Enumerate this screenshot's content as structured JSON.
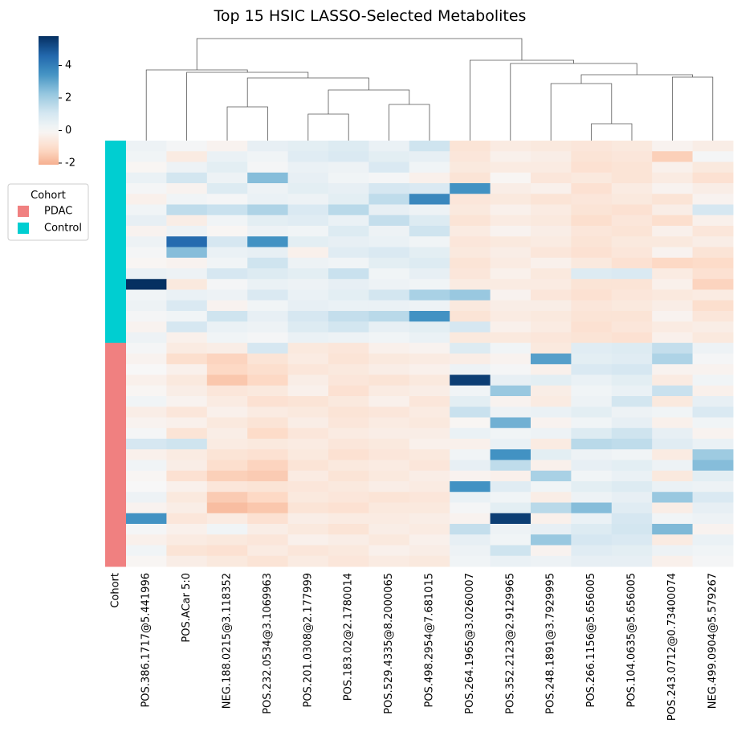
{
  "chart_data": {
    "type": "clustermap",
    "title": "Top 15 HSIC LASSO-Selected Metabolites",
    "columns": [
      "POS.386.1717@5.441996",
      "POS.ACar 5:0",
      "NEG.188.0215@3.118352",
      "POS.232.0534@3.1069963",
      "POS.201.0308@2.177999",
      "POS.183.02@2.1780014",
      "POS.529.4335@8.2000065",
      "POS.498.2954@7.681015",
      "POS.264.1965@3.0260007",
      "POS.352.2123@2.9129965",
      "POS.248.1891@3.7929995",
      "POS.266.1156@5.656005",
      "POS.104.0635@5.656005",
      "POS.243.0712@0.73400074",
      "NEG.499.0904@5.579267"
    ],
    "cohort_label": "Cohort",
    "legend": {
      "title": "Cohort",
      "entries": [
        {
          "name": "PDAC",
          "color": "#f08080"
        },
        {
          "name": "Control",
          "color": "#00ced1"
        }
      ]
    },
    "row_cohort": [
      "Control",
      "Control",
      "Control",
      "Control",
      "Control",
      "Control",
      "Control",
      "Control",
      "Control",
      "Control",
      "Control",
      "Control",
      "Control",
      "Control",
      "Control",
      "Control",
      "Control",
      "Control",
      "Control",
      "PDAC",
      "PDAC",
      "PDAC",
      "PDAC",
      "PDAC",
      "PDAC",
      "PDAC",
      "PDAC",
      "PDAC",
      "PDAC",
      "PDAC",
      "PDAC",
      "PDAC",
      "PDAC",
      "PDAC",
      "PDAC",
      "PDAC",
      "PDAC",
      "PDAC",
      "PDAC",
      "PDAC"
    ],
    "values": [
      [
        0.3,
        0.1,
        -0.2,
        0.5,
        0.6,
        0.8,
        0.4,
        1.2,
        -0.8,
        -0.5,
        -0.6,
        -0.7,
        -0.6,
        -0.2,
        -0.4
      ],
      [
        0.2,
        -0.5,
        0.4,
        0.2,
        0.7,
        0.9,
        0.6,
        0.5,
        -0.7,
        -0.3,
        -0.4,
        -0.8,
        -0.7,
        -1.4,
        0.1
      ],
      [
        -0.1,
        0.3,
        0.6,
        0.1,
        0.4,
        0.3,
        0.9,
        0.2,
        -0.6,
        -0.5,
        -0.5,
        -0.9,
        -0.8,
        -0.3,
        -0.6
      ],
      [
        0.4,
        1.1,
        0.3,
        2.5,
        0.5,
        0.2,
        0.1,
        -0.3,
        -0.8,
        -0.1,
        -0.7,
        -0.6,
        -0.8,
        -0.5,
        -0.9
      ],
      [
        0.1,
        -0.2,
        0.8,
        0.3,
        0.6,
        0.5,
        1.0,
        0.9,
        3.5,
        -0.4,
        -0.3,
        -0.9,
        -0.5,
        -0.2,
        -0.4
      ],
      [
        -0.3,
        0.2,
        0.1,
        0.4,
        0.3,
        0.6,
        1.5,
        3.8,
        -0.7,
        -0.6,
        -0.8,
        -0.7,
        -0.6,
        -0.8,
        -0.2
      ],
      [
        0.2,
        1.5,
        1.3,
        1.8,
        0.9,
        1.6,
        0.5,
        0.3,
        -0.6,
        -0.3,
        -0.5,
        -0.8,
        -0.9,
        -0.4,
        1.0
      ],
      [
        0.5,
        -0.4,
        0.2,
        0.6,
        0.7,
        0.4,
        1.4,
        0.8,
        -0.8,
        -0.5,
        -0.6,
        -1.0,
        -0.7,
        -1.0,
        -0.3
      ],
      [
        -0.2,
        0.3,
        -0.1,
        0.3,
        0.2,
        0.8,
        0.3,
        1.2,
        -0.5,
        -0.2,
        -0.4,
        -0.7,
        -0.8,
        -0.3,
        -0.7
      ],
      [
        0.3,
        4.5,
        1.0,
        3.5,
        0.6,
        0.5,
        0.4,
        0.2,
        -0.7,
        -0.6,
        -0.5,
        -0.8,
        -0.6,
        -0.6,
        -0.4
      ],
      [
        0.1,
        2.5,
        0.4,
        0.5,
        -0.3,
        0.7,
        0.9,
        0.6,
        -0.6,
        -0.4,
        -0.7,
        -0.9,
        -0.7,
        -0.2,
        -0.8
      ],
      [
        -0.1,
        -0.2,
        0.2,
        1.2,
        0.3,
        0.2,
        0.6,
        0.8,
        -0.8,
        -0.5,
        -0.3,
        -0.6,
        -0.9,
        -1.2,
        -1.1
      ],
      [
        0.4,
        0.3,
        1.0,
        0.8,
        0.6,
        1.3,
        0.2,
        0.5,
        -0.7,
        -0.3,
        -0.6,
        0.8,
        0.9,
        -0.5,
        -0.9
      ],
      [
        5.8,
        -0.6,
        0.1,
        0.4,
        0.3,
        0.5,
        0.3,
        0.2,
        -0.5,
        -0.5,
        -0.5,
        -0.8,
        -0.8,
        -0.3,
        -1.3
      ],
      [
        0.2,
        0.4,
        0.3,
        0.9,
        0.4,
        0.6,
        1.1,
        1.9,
        2.2,
        -0.2,
        -0.7,
        -0.9,
        -0.7,
        -0.6,
        -0.5
      ],
      [
        0.3,
        0.9,
        -0.2,
        0.2,
        0.5,
        0.4,
        0.4,
        0.3,
        -0.6,
        -0.4,
        -0.4,
        -0.7,
        -0.6,
        -0.4,
        -1.0
      ],
      [
        0.1,
        0.2,
        1.2,
        0.5,
        1.0,
        1.4,
        1.6,
        3.5,
        -0.8,
        -0.5,
        -0.6,
        -0.8,
        -0.8,
        -0.2,
        -0.7
      ],
      [
        -0.2,
        1.0,
        0.4,
        0.3,
        0.8,
        1.1,
        0.5,
        0.6,
        1.0,
        -0.3,
        -0.5,
        -0.9,
        -0.7,
        -0.5,
        -0.4
      ],
      [
        0.3,
        -0.3,
        0.2,
        0.1,
        0.4,
        0.3,
        0.2,
        0.4,
        -0.6,
        -0.6,
        -0.7,
        -0.8,
        -0.9,
        -0.3,
        -0.6
      ],
      [
        0.1,
        -0.5,
        -0.4,
        1.0,
        -0.6,
        -0.7,
        -0.3,
        -0.2,
        0.8,
        0.2,
        -0.6,
        0.7,
        0.8,
        1.4,
        0.3
      ],
      [
        -0.2,
        -1.0,
        -1.3,
        -0.8,
        -0.5,
        -0.8,
        -0.6,
        -0.5,
        -0.4,
        -0.2,
        3.2,
        0.6,
        0.7,
        1.8,
        0.1
      ],
      [
        0.0,
        -0.3,
        -1.2,
        -1.0,
        -0.7,
        -0.6,
        -0.4,
        -0.3,
        0.3,
        0.1,
        -0.3,
        0.9,
        1.0,
        -0.2,
        -0.2
      ],
      [
        -0.3,
        -0.6,
        -1.6,
        -1.2,
        -0.4,
        -0.7,
        -0.8,
        -0.6,
        5.5,
        0.5,
        0.6,
        0.4,
        0.6,
        -0.5,
        0.2
      ],
      [
        -0.1,
        -0.4,
        -0.7,
        -0.6,
        -0.3,
        -0.9,
        -0.5,
        -0.4,
        0.2,
        2.2,
        -0.4,
        0.2,
        0.4,
        1.3,
        -0.3
      ],
      [
        0.2,
        -0.2,
        -0.5,
        -0.9,
        -0.8,
        -0.6,
        -0.3,
        -0.7,
        0.6,
        -0.2,
        -0.5,
        0.3,
        1.1,
        -0.6,
        0.5
      ],
      [
        -0.4,
        -0.7,
        -0.3,
        -0.5,
        -0.6,
        -0.8,
        -0.7,
        -0.5,
        1.3,
        0.3,
        0.4,
        0.6,
        0.3,
        0.2,
        0.9
      ],
      [
        -0.2,
        -0.3,
        -0.6,
        -0.8,
        -0.4,
        -0.7,
        -0.5,
        -0.6,
        -0.1,
        2.8,
        -0.2,
        0.2,
        0.5,
        -0.3,
        0.2
      ],
      [
        0.1,
        -0.8,
        -0.4,
        -1.1,
        -0.7,
        -0.5,
        -0.4,
        -0.4,
        0.4,
        0.2,
        0.3,
        0.8,
        1.2,
        0.5,
        -0.2
      ],
      [
        1.0,
        1.2,
        -0.5,
        -0.6,
        -0.5,
        -0.7,
        -0.6,
        -0.3,
        -0.3,
        0.4,
        -0.5,
        1.6,
        1.5,
        0.7,
        0.4
      ],
      [
        -0.3,
        -0.5,
        -0.8,
        -0.9,
        -0.6,
        -0.9,
        -0.7,
        -0.6,
        0.2,
        3.5,
        0.6,
        0.3,
        0.2,
        -0.5,
        2.1
      ],
      [
        0.2,
        -0.4,
        -1.0,
        -1.3,
        -0.8,
        -0.6,
        -0.5,
        -0.7,
        0.5,
        1.5,
        -0.3,
        0.5,
        0.6,
        0.3,
        2.5
      ],
      [
        -0.1,
        -0.9,
        -1.4,
        -1.5,
        -0.5,
        -0.8,
        -0.6,
        -0.4,
        -0.2,
        -0.3,
        1.9,
        0.2,
        0.4,
        -0.6,
        0.6
      ],
      [
        0.0,
        -0.3,
        -0.7,
        -0.8,
        -0.7,
        -0.6,
        -0.4,
        -0.5,
        3.5,
        0.7,
        0.2,
        0.6,
        0.8,
        0.4,
        0.3
      ],
      [
        0.3,
        -0.6,
        -1.5,
        -1.2,
        -0.6,
        -0.7,
        -0.8,
        -0.7,
        0.4,
        0.2,
        -0.4,
        0.3,
        0.5,
        2.2,
        0.9
      ],
      [
        -0.2,
        -0.4,
        -1.8,
        -1.6,
        -0.8,
        -0.9,
        -0.6,
        -0.6,
        0.1,
        0.6,
        1.6,
        2.5,
        0.7,
        -0.4,
        0.5
      ],
      [
        3.5,
        -0.7,
        -0.5,
        -0.9,
        -0.4,
        -0.5,
        -0.5,
        -0.4,
        -0.2,
        5.5,
        -0.3,
        0.4,
        1.0,
        0.2,
        0.3
      ],
      [
        0.1,
        -0.3,
        0.2,
        -0.4,
        -0.6,
        -0.8,
        -0.4,
        -0.5,
        1.4,
        0.3,
        0.5,
        0.8,
        1.1,
        2.6,
        -0.2
      ],
      [
        -0.3,
        -0.5,
        -0.6,
        -0.7,
        -0.3,
        -0.4,
        -0.6,
        -0.3,
        0.5,
        0.2,
        2.2,
        1.0,
        0.9,
        -0.5,
        0.4
      ],
      [
        0.2,
        -0.8,
        -0.9,
        -0.5,
        -0.7,
        -0.6,
        -0.3,
        -0.4,
        0.3,
        1.2,
        -0.2,
        0.7,
        0.6,
        0.3,
        0.2
      ],
      [
        -0.1,
        -0.4,
        -0.6,
        -0.8,
        -0.5,
        -0.7,
        -0.5,
        -0.6,
        0.2,
        0.4,
        0.3,
        0.5,
        0.5,
        -0.3,
        0.1
      ]
    ],
    "colorbar": {
      "vlim": [
        -2.1,
        5.8
      ],
      "center": 0,
      "ticks": [
        -2,
        0,
        2,
        4
      ]
    },
    "cmap": [
      "#67001f",
      "#b2182b",
      "#d6604d",
      "#f4a582",
      "#fddbc7",
      "#f7f7f7",
      "#d1e5f0",
      "#92c5de",
      "#4393c3",
      "#2166ac",
      "#053061"
    ],
    "col_dendrogram": [
      [
        2,
        3,
        42
      ],
      [
        4,
        5,
        33
      ],
      [
        6,
        7,
        45
      ],
      [
        16,
        17,
        63
      ],
      [
        15,
        18,
        78
      ],
      [
        1,
        19,
        85
      ],
      [
        0,
        20,
        88
      ],
      [
        11,
        12,
        21
      ],
      [
        10,
        22,
        71
      ],
      [
        13,
        14,
        79
      ],
      [
        23,
        24,
        82
      ],
      [
        9,
        25,
        96
      ],
      [
        8,
        26,
        100
      ],
      [
        21,
        27,
        127
      ]
    ]
  }
}
